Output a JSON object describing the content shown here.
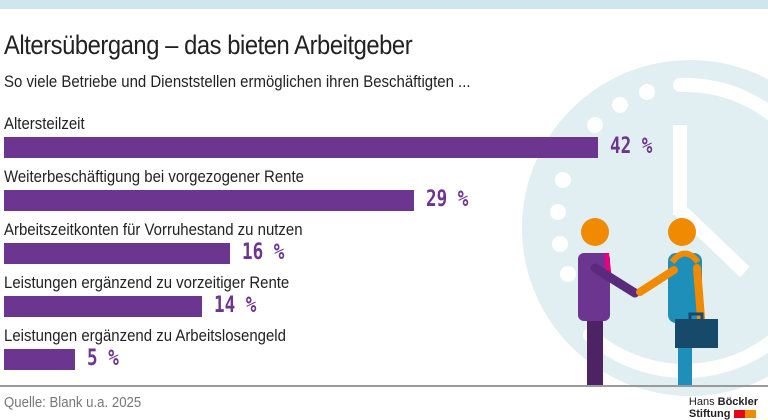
{
  "title": "Altersübergang – das bieten Arbeitgeber",
  "subtitle": "So viele Betriebe und Dienststellen ermöglichen ihren Beschäftigten ...",
  "source": "Quelle: Blank u.a. 2025",
  "logo": {
    "line1a": "Hans",
    "line1b": "Böckler",
    "line2": "Stiftung",
    "colors": [
      "#e30613",
      "#f08a00"
    ]
  },
  "colors": {
    "bar": "#6b3590",
    "clock": "#e2eff2"
  },
  "chart_data": {
    "type": "bar",
    "orientation": "horizontal",
    "title": "Altersübergang – das bieten Arbeitgeber",
    "subtitle": "So viele Betriebe und Dienststellen ermöglichen ihren Beschäftigten ...",
    "categories": [
      "Altersteilzeit",
      "Weiterbeschäftigung bei vorgezogener Rente",
      "Arbeitszeitkonten für Vorruhestand zu nutzen",
      "Leistungen ergänzend zu vorzeitiger Rente",
      "Leistungen ergänzend zu Arbeitslosengeld"
    ],
    "values": [
      42,
      29,
      16,
      14,
      5
    ],
    "value_labels": [
      "42 %",
      "29 %",
      "16 %",
      "14 %",
      "5 %"
    ],
    "unit": "%",
    "grid": false
  }
}
